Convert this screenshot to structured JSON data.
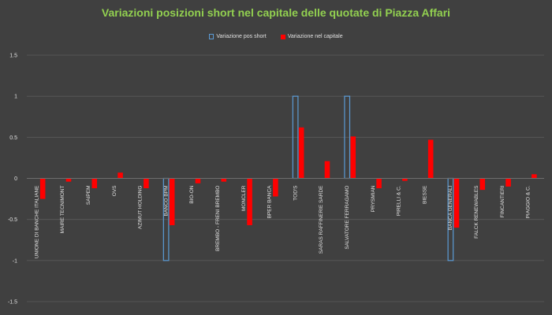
{
  "chart_data": {
    "type": "bar",
    "title": "Variazioni posizioni short nel capitale delle quotate di Piazza Affari",
    "xlabel": "",
    "ylabel": "",
    "ylim": [
      -1.5,
      1.5
    ],
    "yticks": [
      "1.5",
      "1",
      "0.5",
      "0",
      "-0.5",
      "-1",
      "-1.5"
    ],
    "grid": true,
    "legend_position": "top",
    "categories": [
      "UNIONE DI BANCHE ITALIANE",
      "MAIRE TECNIMONT",
      "SAIPEM",
      "OVS",
      "AZIMUT HOLDING",
      "BANCO BPM",
      "BIO-ON",
      "BREMBO - FRENI BREMBO",
      "MONCLER",
      "BPER BANCA",
      "TOD'S",
      "SARAS RAFFINERIE SARDE",
      "SALVATORE FERRAGAMO",
      "PRYSMIAN",
      "PIRELLI & C.",
      "BIESSE",
      "BANCA GENERALI",
      "FALCK RENEWABLES",
      "FINCANTIERI",
      "PIAGGIO & C."
    ],
    "series": [
      {
        "name": "Variazione pos short",
        "color": "#5b9bd5",
        "style": "outline",
        "values": [
          0,
          0,
          0,
          0,
          0,
          -1,
          0,
          0,
          0,
          0,
          1,
          0,
          1,
          0,
          0,
          0,
          -1,
          0,
          0,
          0
        ]
      },
      {
        "name": "Variazione nel capitale",
        "color": "#ff0000",
        "style": "filled",
        "values": [
          -0.25,
          -0.04,
          -0.12,
          0.07,
          -0.12,
          -0.57,
          -0.06,
          -0.04,
          -0.57,
          -0.22,
          0.62,
          0.21,
          0.51,
          -0.12,
          -0.03,
          0.47,
          -0.6,
          -0.14,
          -0.1,
          0.05
        ]
      }
    ]
  }
}
